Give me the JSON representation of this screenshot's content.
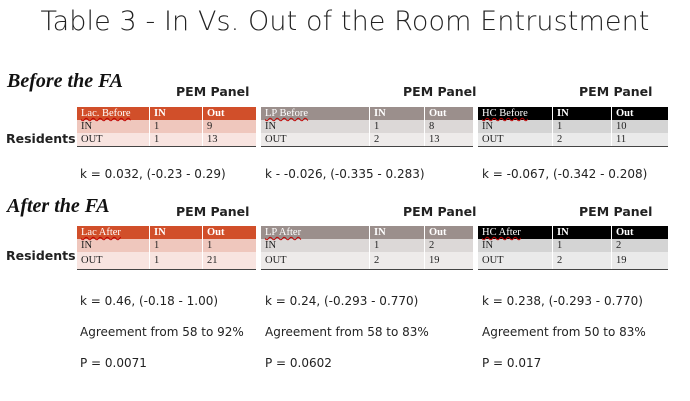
{
  "title": "Table 3 - In Vs. Out of the Room Entrustment",
  "sections": [
    {
      "heading": "Before the FA",
      "row_label": "Residents",
      "stats_k": [
        "k = 0.032, (-0.23 - 0.29)",
        "k - -0.026, (-0.335 - 0.283)",
        "k = -0.067, (-0.342 - 0.208)"
      ],
      "tables": [
        {
          "panel_label": "PEM Panel",
          "corner": "Lac. Before",
          "col_in": "IN",
          "col_out": "Out",
          "rows": [
            {
              "label": "IN",
              "in": "1",
              "out": "9"
            },
            {
              "label": "OUT",
              "in": "1",
              "out": "13"
            }
          ]
        },
        {
          "panel_label": "PEM Panel",
          "corner": "LP  Before",
          "col_in": "IN",
          "col_out": "Out",
          "rows": [
            {
              "label": "IN",
              "in": "1",
              "out": "8"
            },
            {
              "label": "OUT",
              "in": "2",
              "out": "13"
            }
          ]
        },
        {
          "panel_label": "PEM Panel",
          "corner": "HC  Before",
          "col_in": "IN",
          "col_out": "Out",
          "rows": [
            {
              "label": "IN",
              "in": "1",
              "out": "10"
            },
            {
              "label": "OUT",
              "in": "2",
              "out": "11"
            }
          ]
        }
      ]
    },
    {
      "heading": "After the FA",
      "row_label": "Residents",
      "stats_k": [
        "k = 0.46, (-0.18 - 1.00)",
        "k = 0.24, (-0.293 - 0.770)",
        "k = 0.238, (-0.293 - 0.770)"
      ],
      "agreement": [
        "Agreement from 58 to 92%",
        "Agreement from 58 to 83%",
        "Agreement from 50 to 83%"
      ],
      "p_values": [
        "P = 0.0071",
        "P = 0.0602",
        "P = 0.017"
      ],
      "tables": [
        {
          "panel_label": "PEM Panel",
          "corner": "Lac  After",
          "col_in": "IN",
          "col_out": "Out",
          "rows": [
            {
              "label": "IN",
              "in": "1",
              "out": "1"
            },
            {
              "label": "OUT",
              "in": "1",
              "out": "21"
            }
          ]
        },
        {
          "panel_label": "PEM Panel",
          "corner": "LP  After",
          "col_in": "IN",
          "col_out": "Out",
          "rows": [
            {
              "label": "IN",
              "in": "1",
              "out": "2"
            },
            {
              "label": "OUT",
              "in": "2",
              "out": "19"
            }
          ]
        },
        {
          "panel_label": "PEM Panel",
          "corner": "HC  After",
          "col_in": "IN",
          "col_out": "Out",
          "rows": [
            {
              "label": "IN",
              "in": "1",
              "out": "2"
            },
            {
              "label": "OUT",
              "in": "2",
              "out": "19"
            }
          ]
        }
      ]
    }
  ],
  "colors": {
    "lac_header": "#d14f2a",
    "lac_row1": "#efc7bd",
    "lac_row2": "#f8e4e0",
    "lp_header": "#9b8f8c",
    "lp_row1": "#dcd8d7",
    "lp_row2": "#eeebea",
    "hc_header": "#000000",
    "hc_row1": "#d4d4d4",
    "hc_row2": "#eaeaea"
  }
}
